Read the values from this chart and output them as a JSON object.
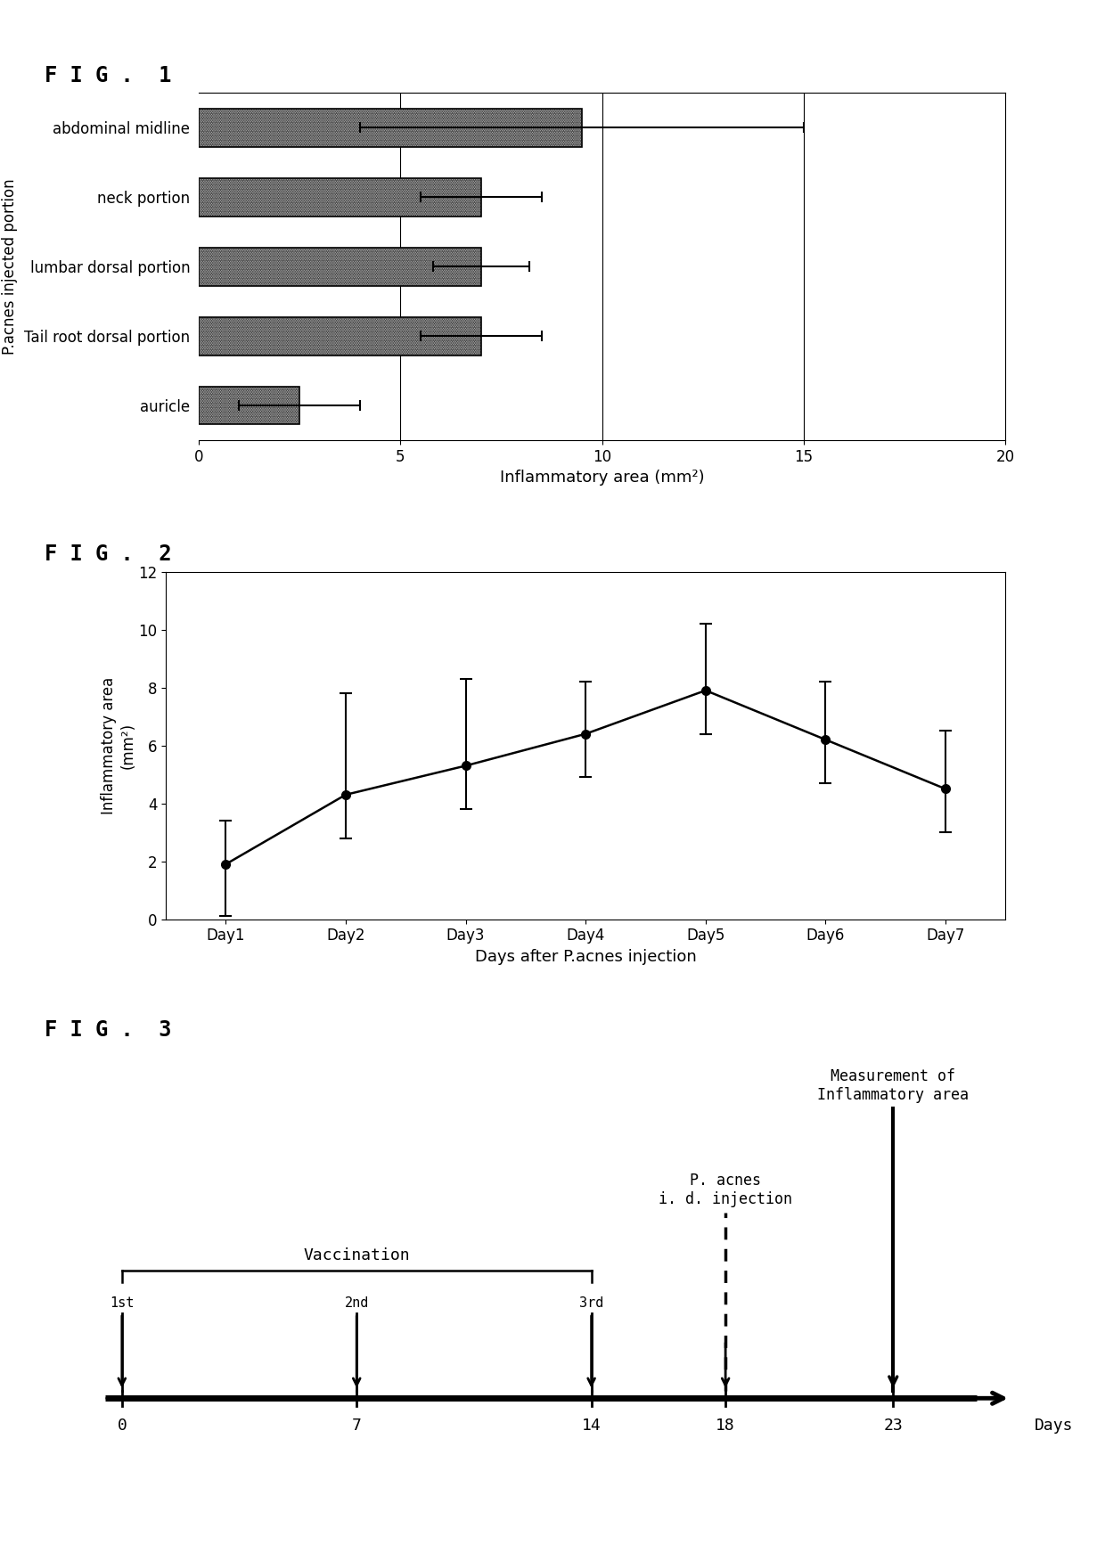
{
  "fig1": {
    "title": "F I G .  1",
    "categories": [
      "abdominal midline",
      "neck portion",
      "lumbar dorsal portion",
      "Tail root dorsal portion",
      "auricle"
    ],
    "values": [
      9.5,
      7.0,
      7.0,
      7.0,
      2.5
    ],
    "errors": [
      5.5,
      1.5,
      1.2,
      1.5,
      1.5
    ],
    "xlabel": "Inflammatory area (mm²)",
    "ylabel": "P.acnes injected portion",
    "xlim": [
      0,
      20
    ],
    "xticks": [
      0,
      5,
      10,
      15,
      20
    ],
    "vlines": [
      5,
      10,
      15
    ]
  },
  "fig2": {
    "title": "F I G .  2",
    "x": [
      1,
      2,
      3,
      4,
      5,
      6,
      7
    ],
    "y": [
      1.9,
      4.3,
      5.3,
      6.4,
      7.9,
      6.2,
      4.5
    ],
    "yerr_upper": [
      1.5,
      3.5,
      3.0,
      1.8,
      2.3,
      2.0,
      2.0
    ],
    "yerr_lower": [
      1.8,
      1.5,
      1.5,
      1.5,
      1.5,
      1.5,
      1.5
    ],
    "xlabels": [
      "Day1",
      "Day2",
      "Day3",
      "Day4",
      "Day5",
      "Day6",
      "Day7"
    ],
    "xlabel": "Days after P.acnes injection",
    "ylabel": "Inflammatory area\n(mm²)",
    "ylim": [
      0,
      12
    ],
    "yticks": [
      0,
      2,
      4,
      6,
      8,
      10,
      12
    ]
  },
  "fig3": {
    "title": "F I G .  3",
    "vaccination_days": [
      0,
      7,
      14
    ],
    "vaccination_superscripts": [
      "1st",
      "2nd",
      "3rd"
    ],
    "vaccination_label": "Vaccination",
    "pacnes_day": 18,
    "pacnes_label": "P. acnes\ni. d. injection",
    "measurement_day": 23,
    "measurement_label": "Measurement of\nInflammatory area",
    "day_positions": [
      0,
      7,
      14,
      18,
      23
    ],
    "day_labels": [
      "0",
      "7",
      "14",
      "18",
      "23"
    ],
    "days_label": "Days",
    "xlim": [
      -1,
      28
    ],
    "ylim": [
      0,
      12
    ]
  }
}
